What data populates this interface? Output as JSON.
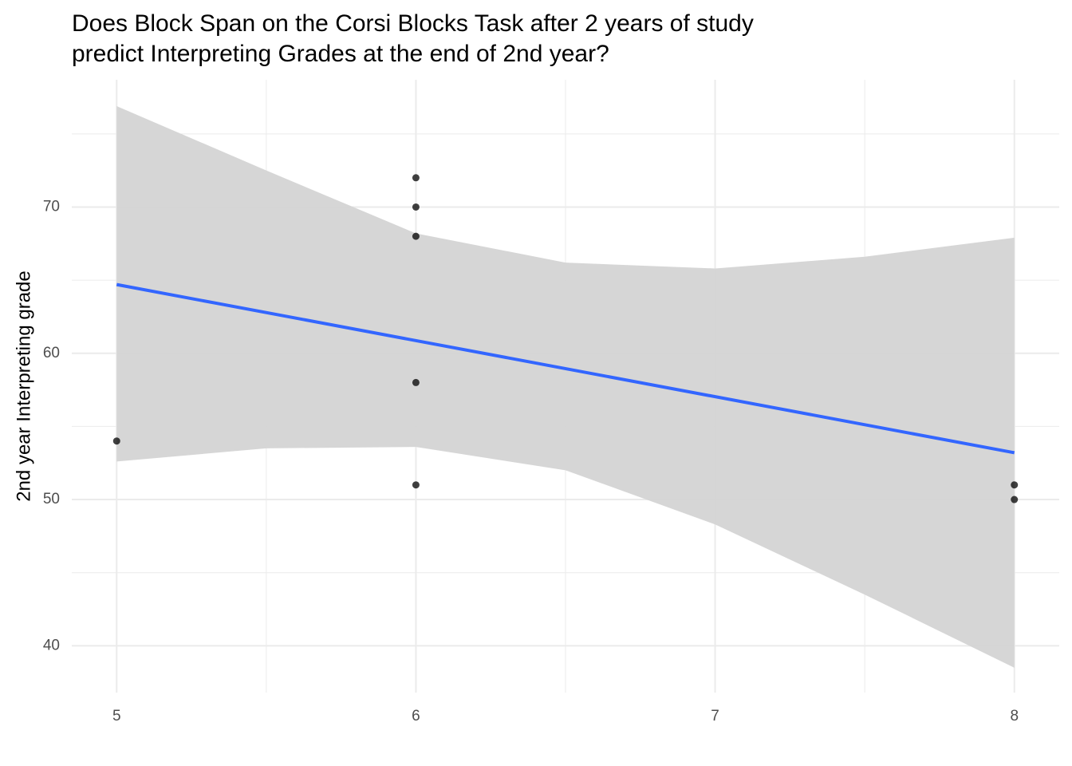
{
  "chart_data": {
    "type": "scatter",
    "title": [
      "Does Block Span on the Corsi Blocks Task after 2 years of study",
      "predict Interpreting Grades at the end of 2nd year?"
    ],
    "ylabel": "2nd year Interpreting grade",
    "xlim": [
      4.85,
      8.15
    ],
    "ylim": [
      36.8,
      78.7
    ],
    "xticks": [
      5,
      6,
      7,
      8
    ],
    "yticks": [
      40,
      50,
      60,
      70
    ],
    "x_minor_grid": [
      5.5,
      6.5,
      7.5
    ],
    "y_minor_grid": [
      45,
      55,
      65,
      75
    ],
    "grid": true,
    "series": [
      {
        "type": "band",
        "color": "#d4d4d4",
        "x": [
          5,
          5.5,
          6,
          6.5,
          7,
          7.5,
          8
        ],
        "upper": [
          76.9,
          72.5,
          68.2,
          66.2,
          65.8,
          66.6,
          67.9
        ],
        "lower": [
          52.6,
          53.5,
          53.6,
          52.0,
          48.3,
          43.5,
          38.5
        ]
      },
      {
        "type": "line",
        "color": "#3366ff",
        "x": [
          5,
          8
        ],
        "values": [
          64.7,
          53.2
        ]
      },
      {
        "type": "scatter",
        "color": "#000000",
        "x": [
          5,
          6,
          6,
          6,
          6,
          6,
          8,
          8
        ],
        "values": [
          54,
          72,
          70,
          68,
          58,
          51,
          51,
          50
        ]
      }
    ]
  }
}
